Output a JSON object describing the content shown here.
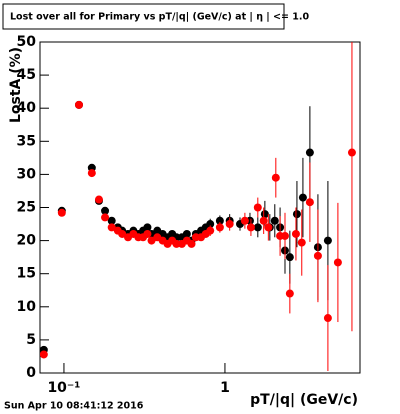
{
  "chart_data": {
    "type": "scatter",
    "title": "Lost over all for Primary vs pT/|q| (GeV/c) at | η | <= 1.0",
    "x_label": "pT/|q| (GeV/c)",
    "y_label": "LostA (%)",
    "footer": "Sun Apr 10 08:41:12 2016",
    "log_x": true,
    "grid": false,
    "xlim": [
      0.071,
      6.9
    ],
    "xticks": [
      {
        "value": 0.1,
        "label": "10⁻¹"
      },
      1
    ],
    "ylim": [
      0,
      50
    ],
    "yticks": [
      0,
      5,
      10,
      15,
      20,
      25,
      30,
      35,
      40,
      45,
      50
    ],
    "series": [
      {
        "color": "#000000",
        "x": [
          0.075,
          0.097,
          0.124,
          0.149,
          0.165,
          0.18,
          0.198,
          0.216,
          0.23,
          0.25,
          0.27,
          0.29,
          0.31,
          0.33,
          0.35,
          0.38,
          0.41,
          0.44,
          0.47,
          0.5,
          0.54,
          0.58,
          0.62,
          0.66,
          0.71,
          0.76,
          0.81,
          0.93,
          1.07,
          1.24,
          1.43,
          1.6,
          1.77,
          1.9,
          2.04,
          2.2,
          2.36,
          2.53,
          2.8,
          3.05,
          3.37,
          3.78,
          4.36
        ],
        "values": [
          3.5,
          24.5,
          40.5,
          31,
          26,
          24.5,
          23,
          22,
          21.5,
          21,
          21.5,
          21,
          21.5,
          22,
          21,
          21.5,
          21,
          20.5,
          21,
          20.5,
          20.5,
          21,
          20,
          21,
          21.5,
          22,
          22.5,
          23,
          23,
          22.5,
          23,
          22,
          24,
          22,
          23,
          22,
          18.5,
          17.5,
          24,
          26.5,
          33.3,
          19,
          20
        ],
        "errors": [
          0.5,
          0.5,
          0.5,
          0.5,
          0.5,
          0.5,
          0.5,
          0.5,
          0.5,
          0.5,
          0.5,
          0.5,
          0.5,
          0.5,
          0.5,
          0.5,
          0.5,
          0.5,
          0.5,
          0.5,
          0.5,
          0.5,
          0.5,
          0.5,
          0.5,
          0.5,
          0.8,
          0.8,
          1,
          1,
          1.2,
          1.5,
          2,
          2,
          2.5,
          3,
          3.5,
          4,
          5,
          6,
          7,
          8,
          9
        ]
      },
      {
        "color": "#ff0000",
        "x": [
          0.075,
          0.097,
          0.124,
          0.149,
          0.165,
          0.18,
          0.198,
          0.216,
          0.23,
          0.25,
          0.27,
          0.29,
          0.31,
          0.33,
          0.35,
          0.38,
          0.41,
          0.44,
          0.47,
          0.5,
          0.54,
          0.58,
          0.62,
          0.66,
          0.71,
          0.76,
          0.81,
          0.93,
          1.07,
          1.33,
          1.45,
          1.6,
          1.74,
          1.86,
          2.07,
          2.2,
          2.36,
          2.53,
          2.76,
          3.0,
          3.37,
          3.78,
          4.36,
          5.03,
          6.15
        ],
        "values": [
          2.8,
          24.2,
          40.5,
          30.2,
          26.2,
          23.5,
          22,
          21.5,
          21,
          20.5,
          21,
          20.5,
          20.5,
          21,
          20,
          20.5,
          20,
          19.5,
          20,
          19.5,
          19.5,
          20,
          19.5,
          20.5,
          20.5,
          21,
          21.5,
          22,
          22.5,
          23,
          22,
          25,
          23,
          22,
          29.5,
          20.7,
          20.7,
          12,
          21,
          19.7,
          25.8,
          17.7,
          8.3,
          16.7,
          33.3
        ],
        "errors": [
          0.5,
          0.5,
          0.5,
          0.5,
          0.5,
          0.5,
          0.5,
          0.5,
          0.5,
          0.5,
          0.5,
          0.5,
          0.5,
          0.5,
          0.5,
          0.5,
          0.5,
          0.5,
          0.5,
          0.5,
          0.5,
          0.5,
          0.5,
          0.5,
          0.5,
          0.5,
          0.8,
          0.8,
          1,
          1.2,
          1.3,
          1.5,
          2,
          2,
          3,
          3,
          3.5,
          3,
          4,
          5,
          6,
          7,
          8,
          9,
          27
        ]
      }
    ]
  }
}
